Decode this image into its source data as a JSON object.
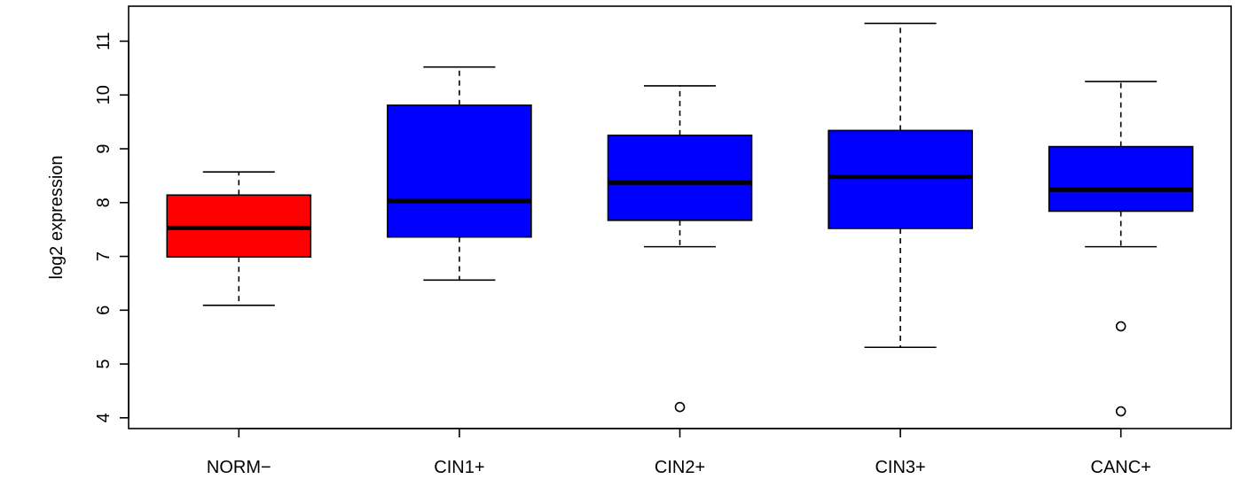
{
  "chart_data": {
    "type": "boxplot",
    "ylabel": "log2 expression",
    "ylim": [
      3.8,
      11.65
    ],
    "yticks": [
      "4",
      "5",
      "6",
      "7",
      "8",
      "9",
      "10",
      "11"
    ],
    "categories": [
      "NORM−",
      "CIN1+",
      "CIN2+",
      "CIN3+",
      "CANC+"
    ],
    "boxes": [
      {
        "name": "NORM−",
        "whisker_low": 6.09,
        "q1": 6.99,
        "median": 7.53,
        "q3": 8.14,
        "whisker_high": 8.57,
        "outliers": [],
        "color": "#ff0000"
      },
      {
        "name": "CIN1+",
        "whisker_low": 6.56,
        "q1": 7.36,
        "median": 8.03,
        "q3": 9.81,
        "whisker_high": 10.52,
        "outliers": [],
        "color": "#0000ff"
      },
      {
        "name": "CIN2+",
        "whisker_low": 7.18,
        "q1": 7.67,
        "median": 8.37,
        "q3": 9.25,
        "whisker_high": 10.17,
        "outliers": [
          4.2
        ],
        "color": "#0000ff"
      },
      {
        "name": "CIN3+",
        "whisker_low": 5.31,
        "q1": 7.52,
        "median": 8.48,
        "q3": 9.34,
        "whisker_high": 11.33,
        "outliers": [],
        "color": "#0000ff"
      },
      {
        "name": "CANC+",
        "whisker_low": 7.18,
        "q1": 7.84,
        "median": 8.24,
        "q3": 9.04,
        "whisker_high": 10.25,
        "outliers": [
          5.7,
          4.12
        ],
        "color": "#0000ff"
      }
    ],
    "grid": false,
    "legend": "none"
  }
}
